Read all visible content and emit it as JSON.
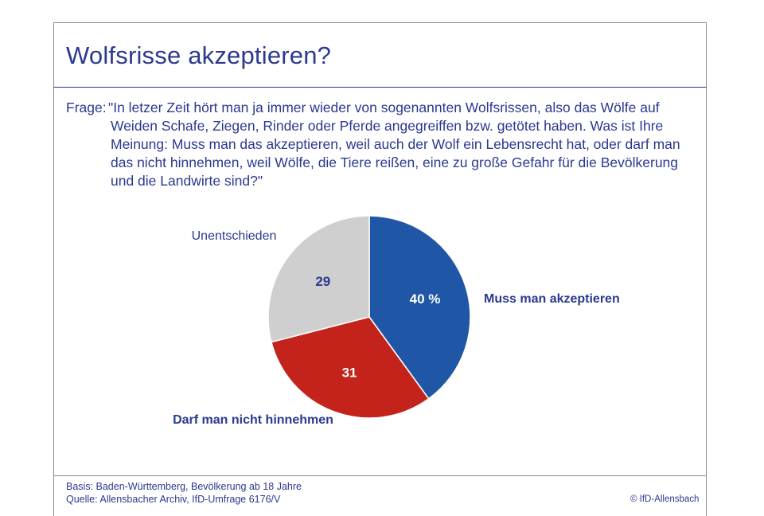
{
  "header": {
    "title": "Wolfsrisse akzeptieren?"
  },
  "question": {
    "prefix": "Frage:",
    "text": "\"In letzer Zeit hört man ja immer wieder von sogenannten Wolfsrissen, also das Wölfe auf Weiden Schafe, Ziegen, Rinder oder Pferde angegreiffen bzw. getötet haben. Was ist Ihre Meinung: Muss man das akzeptieren, weil auch der Wolf ein Lebensrecht hat, oder darf man das nicht hinnehmen, weil Wölfe, die Tiere reißen, eine zu große Gefahr für die Bevölkerung und die Landwirte sind?\""
  },
  "chart_data": {
    "type": "pie",
    "title": "",
    "categories": [
      "Muss man akzeptieren",
      "Darf man nicht hinnehmen",
      "Unentschieden"
    ],
    "values": [
      40,
      31,
      29
    ],
    "value_labels": [
      "40 %",
      "31",
      "29"
    ],
    "colors": [
      "#1f57a6",
      "#c4231c",
      "#cfcfcf"
    ],
    "label_colors": [
      "#ffffff",
      "#ffffff",
      "#2b3990"
    ],
    "category_label_colors": [
      "#2b3990",
      "#2b3990",
      "#2b3990"
    ]
  },
  "footer": {
    "basis": "Basis: Baden-Württemberg, Bevölkerung ab 18 Jahre",
    "source": "Quelle: Allensbacher Archiv, IfD-Umfrage 6176/V",
    "copyright": "© IfD-Allensbach"
  }
}
